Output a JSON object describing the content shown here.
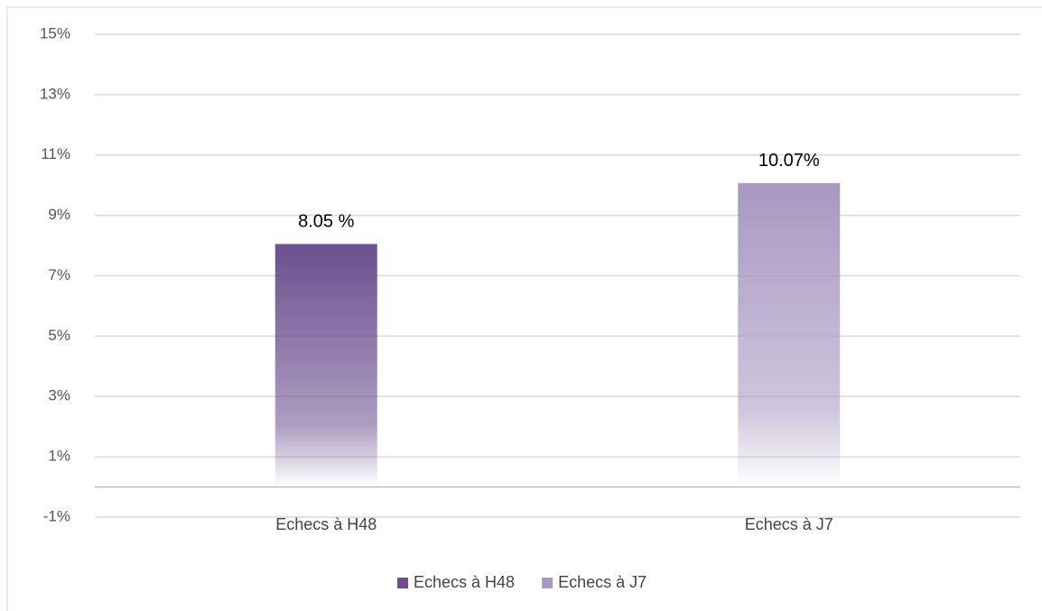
{
  "chart_data": {
    "type": "bar",
    "categories": [
      "Echecs à H48",
      "Echecs à J7"
    ],
    "series": [
      {
        "name": "Echecs à H48",
        "color": "#6b4f8f",
        "values": [
          8.05,
          null
        ],
        "value_labels": [
          "8.05 %",
          null
        ]
      },
      {
        "name": "Echecs à J7",
        "color": "#a898c2",
        "values": [
          null,
          10.07
        ],
        "value_labels": [
          null,
          "10.07%"
        ]
      }
    ],
    "ylim": [
      -1,
      15
    ],
    "yticks": [
      {
        "value": -1,
        "label": "-1%"
      },
      {
        "value": 1,
        "label": "1%"
      },
      {
        "value": 3,
        "label": "3%"
      },
      {
        "value": 5,
        "label": "5%"
      },
      {
        "value": 7,
        "label": "7%"
      },
      {
        "value": 9,
        "label": "9%"
      },
      {
        "value": 11,
        "label": "11%"
      },
      {
        "value": 13,
        "label": "13%"
      },
      {
        "value": 15,
        "label": "15%"
      }
    ],
    "grid": true,
    "legend": "bottom"
  }
}
